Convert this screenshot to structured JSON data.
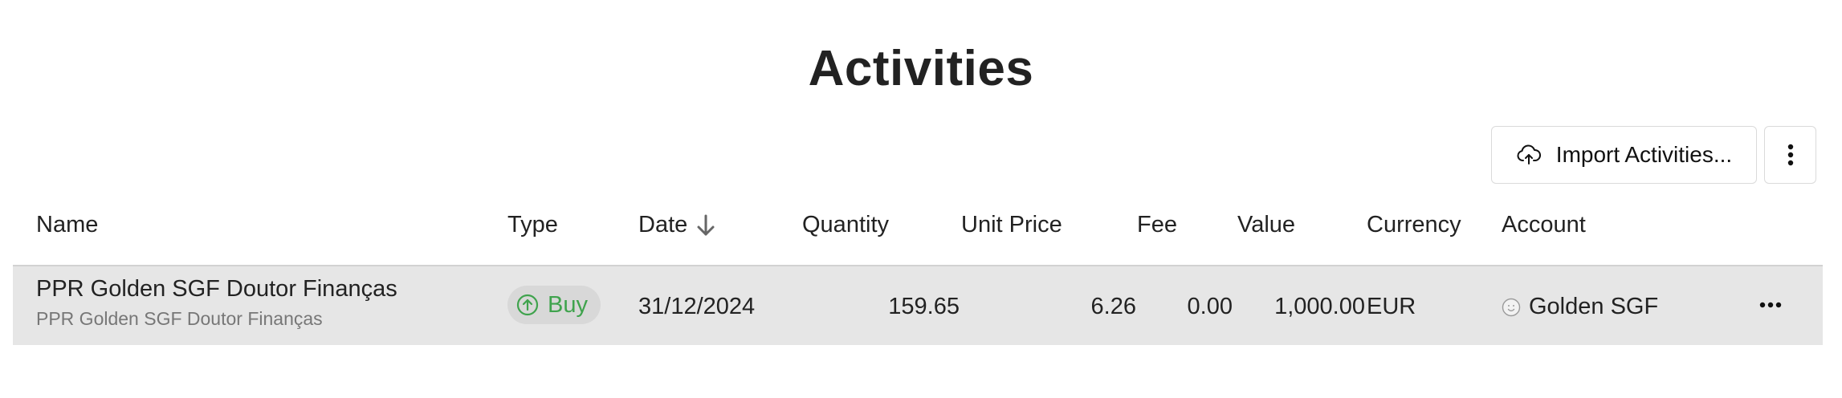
{
  "page": {
    "title": "Activities"
  },
  "toolbar": {
    "import_label": "Import Activities...",
    "import_icon": "cloud-upload-icon",
    "more_icon": "more-vertical-icon"
  },
  "table": {
    "columns": {
      "name": "Name",
      "type": "Type",
      "date": "Date",
      "quantity": "Quantity",
      "unit_price": "Unit Price",
      "fee": "Fee",
      "value": "Value",
      "currency": "Currency",
      "account": "Account"
    },
    "sort": {
      "column": "Date",
      "direction": "descending",
      "icon": "arrow-down-icon"
    },
    "rows": [
      {
        "name": "PPR Golden SGF Doutor Finanças",
        "name_sub": "PPR Golden SGF Doutor Finanças",
        "type": "Buy",
        "type_icon": "arrow-up-circle-icon",
        "date": "31/12/2024",
        "quantity": "159.65",
        "unit_price": "6.26",
        "fee": "0.00",
        "value": "1,000.00",
        "currency": "EUR",
        "account": "Golden SGF",
        "account_icon": "account-avatar-icon",
        "menu_icon": "more-horizontal-icon"
      }
    ]
  },
  "colors": {
    "buy_green": "#3fa34d",
    "row_background": "#e6e6e6",
    "badge_background": "#d8d8d8"
  }
}
